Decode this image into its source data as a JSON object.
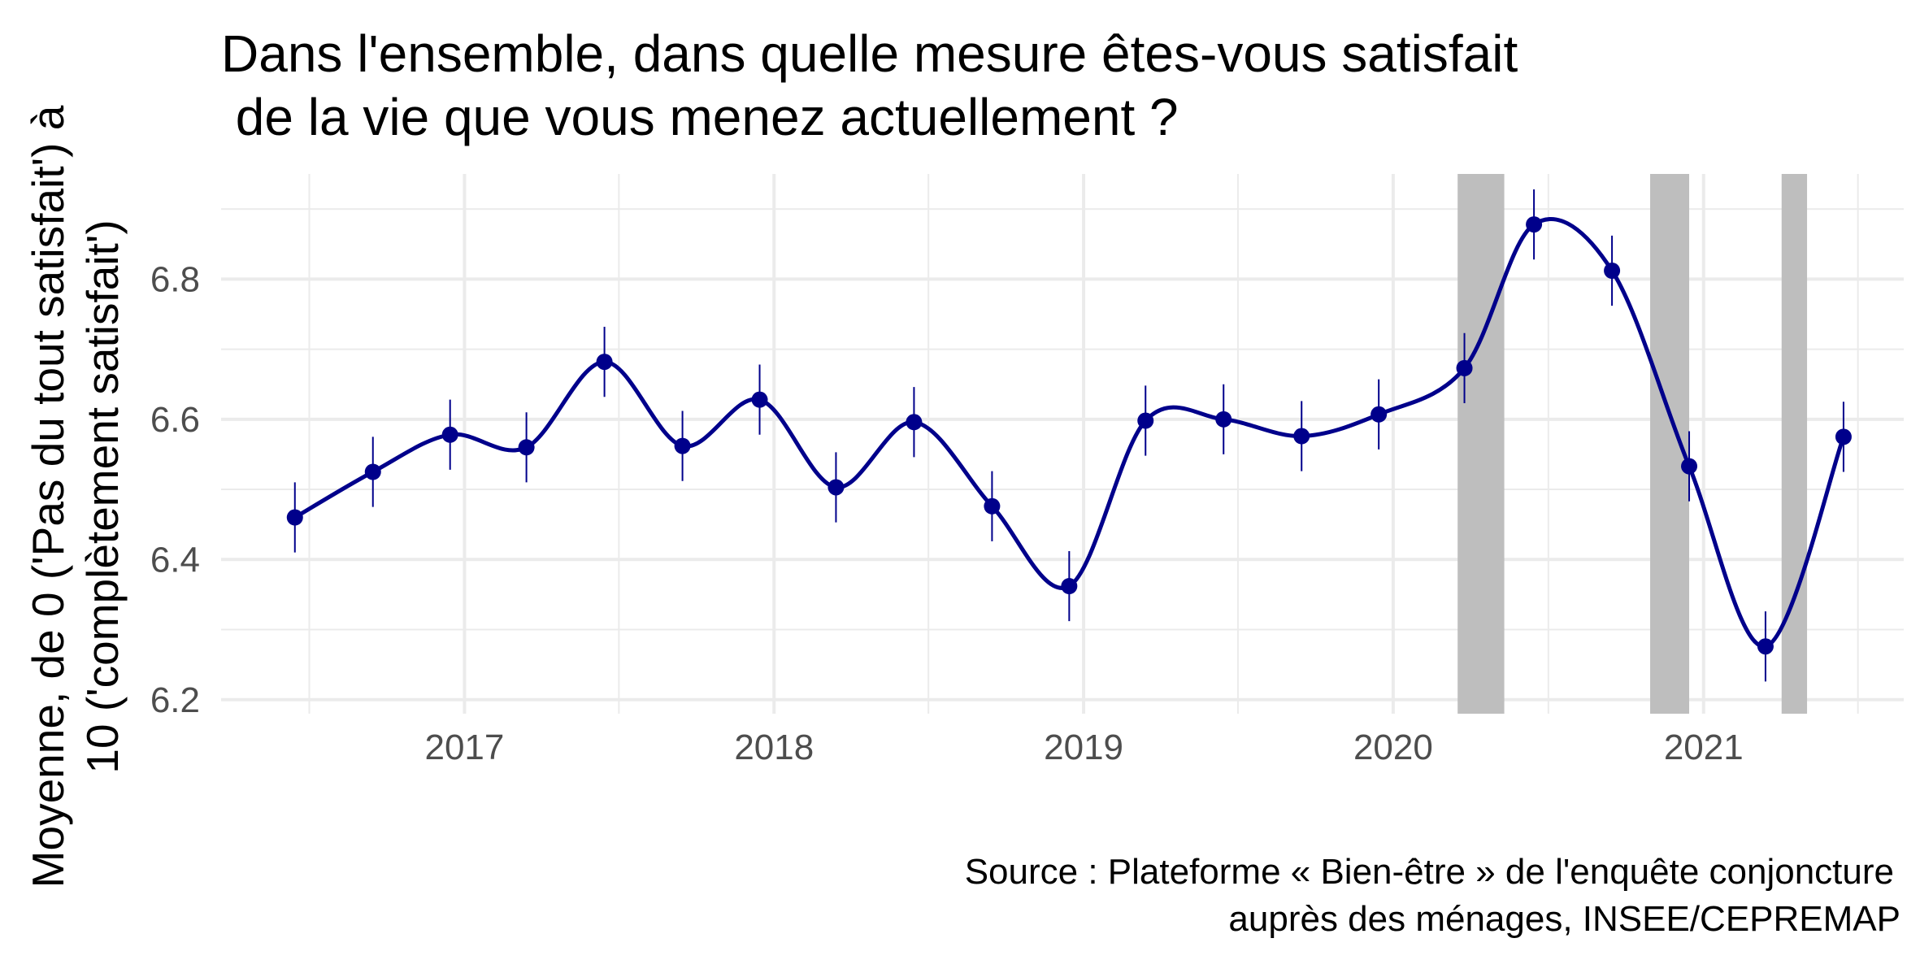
{
  "chart_data": {
    "type": "line",
    "title": [
      "Dans l'ensemble, dans quelle mesure êtes-vous satisfait",
      " de la vie que vous menez actuellement ?"
    ],
    "ylabel": [
      "Moyenne, de 0 ('Pas du tout satisfait') à",
      "10 ('complètement satisfait')"
    ],
    "caption": [
      "Source : Plateforme « Bien-être » de l'enquête conjoncture",
      "auprès des ménages, INSEE/CEPREMAP"
    ],
    "x_ticks": [
      "2017",
      "2018",
      "2019",
      "2020",
      "2021"
    ],
    "y_ticks": [
      "6.2",
      "6.4",
      "6.6",
      "6.8"
    ],
    "ylim": [
      6.18,
      6.95
    ],
    "xlim": [
      "2016-03-20",
      "2021-08-25"
    ],
    "grid": true,
    "colors": {
      "line": "#00008b",
      "points": "#00008b",
      "shading": "#bebebe",
      "grid": "#ebebeb"
    },
    "series": [
      {
        "x": [
          "2016-06-15",
          "2016-09-15",
          "2016-12-15",
          "2017-03-15",
          "2017-06-15",
          "2017-09-15",
          "2017-12-15",
          "2018-03-15",
          "2018-06-15",
          "2018-09-15",
          "2018-12-15",
          "2019-03-15",
          "2019-06-15",
          "2019-09-15",
          "2019-12-15",
          "2020-03-25",
          "2020-06-15",
          "2020-09-15",
          "2020-12-15",
          "2021-03-15",
          "2021-06-15"
        ],
        "y": [
          6.46,
          6.525,
          6.578,
          6.56,
          6.682,
          6.562,
          6.628,
          6.503,
          6.596,
          6.476,
          6.362,
          6.598,
          6.6,
          6.576,
          6.607,
          6.673,
          6.878,
          6.812,
          6.533,
          6.276,
          6.575
        ],
        "ci_low": [
          6.41,
          6.475,
          6.528,
          6.51,
          6.632,
          6.512,
          6.578,
          6.453,
          6.546,
          6.426,
          6.312,
          6.548,
          6.55,
          6.526,
          6.557,
          6.623,
          6.828,
          6.762,
          6.483,
          6.226,
          6.525
        ],
        "ci_high": [
          6.51,
          6.575,
          6.628,
          6.61,
          6.732,
          6.612,
          6.678,
          6.553,
          6.646,
          6.526,
          6.412,
          6.648,
          6.65,
          6.626,
          6.657,
          6.723,
          6.928,
          6.862,
          6.583,
          6.326,
          6.625
        ]
      }
    ],
    "shaded_periods": [
      [
        "2020-03-17",
        "2020-05-11"
      ],
      [
        "2020-10-30",
        "2020-12-15"
      ],
      [
        "2021-04-03",
        "2021-05-03"
      ]
    ]
  }
}
